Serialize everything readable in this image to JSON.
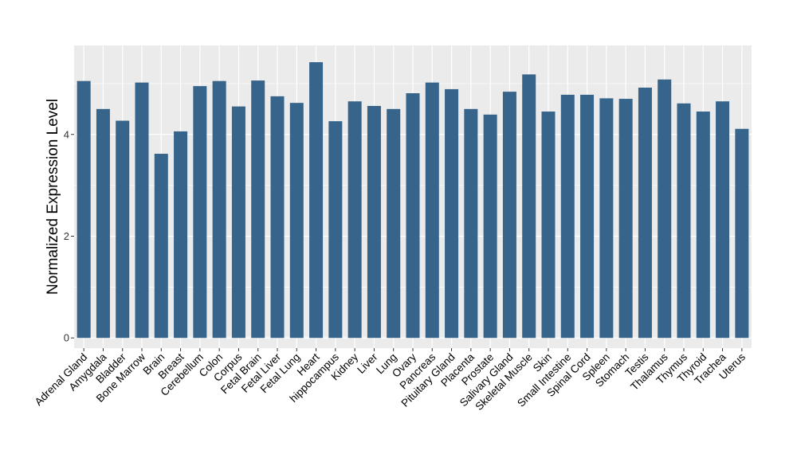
{
  "chart_data": {
    "type": "bar",
    "xlabel": "",
    "ylabel": "Normalized Expression Level",
    "ylim": [
      -0.2,
      5.75
    ],
    "yticks": [
      0,
      2,
      4
    ],
    "grid": true,
    "legend": "none",
    "categories": [
      "Adrenal Gland",
      "Amygdala",
      "Bladder",
      "Bone Marrow",
      "Brain",
      "Breast",
      "Cerebellum",
      "Colon",
      "Corpus",
      "Fetal Brain",
      "Fetal Liver",
      "Fetal Lung",
      "Heart",
      "hippocampus",
      "Kidney",
      "Liver",
      "Lung",
      "Ovary",
      "Pancreas",
      "Pituitary Gland",
      "Placenta",
      "Prostate",
      "Salivary Gland",
      "Skeletal Muscle",
      "Skin",
      "Small Intestine",
      "Spinal Cord",
      "Spleen",
      "Stomach",
      "Testis",
      "Thalamus",
      "Thymus",
      "Thyroid",
      "Trachea",
      "Uterus"
    ],
    "values": [
      5.05,
      4.5,
      4.27,
      5.02,
      3.62,
      4.06,
      4.95,
      5.05,
      4.55,
      5.06,
      4.75,
      4.62,
      5.42,
      4.26,
      4.65,
      4.56,
      4.5,
      4.81,
      5.02,
      4.89,
      4.5,
      4.39,
      4.84,
      5.18,
      4.45,
      4.78,
      4.78,
      4.71,
      4.7,
      4.92,
      5.08,
      4.61,
      4.45,
      4.65,
      4.11
    ]
  },
  "colors": {
    "bar": "#36648B",
    "panel": "#EBEBEB",
    "grid": "#FFFFFF",
    "text": "#000000",
    "tick_text": "#333333"
  }
}
